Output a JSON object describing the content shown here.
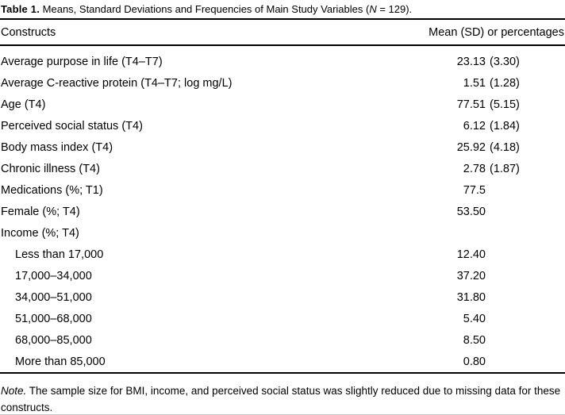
{
  "caption": {
    "label": "Table 1.",
    "body": " Means, Standard Deviations and Frequencies of Main Study Variables (",
    "n": "N",
    "suffix": " = 129)."
  },
  "header": {
    "construct_col": "Constructs",
    "value_col": "Mean (SD) or percentages"
  },
  "rows": [
    {
      "label": "Average purpose in life (T4–T7)",
      "num": "23.13",
      "sd": "(3.30)",
      "indent": false
    },
    {
      "label": "Average C-reactive protein (T4–T7; log mg/L)",
      "num": "1.51",
      "sd": "(1.28)",
      "indent": false
    },
    {
      "label": "Age (T4)",
      "num": "77.51",
      "sd": "(5.15)",
      "indent": false
    },
    {
      "label": "Perceived social status (T4)",
      "num": "6.12",
      "sd": "(1.84)",
      "indent": false
    },
    {
      "label": "Body mass index (T4)",
      "num": "25.92",
      "sd": "(4.18)",
      "indent": false
    },
    {
      "label": "Chronic illness (T4)",
      "num": "2.78",
      "sd": "(1.87)",
      "indent": false
    },
    {
      "label": "Medications (%; T1)",
      "num": "77.5",
      "sd": "",
      "indent": false
    },
    {
      "label": "Female (%; T4)",
      "num": "53.50",
      "sd": "",
      "indent": false
    },
    {
      "label": "Income (%; T4)",
      "num": "",
      "sd": "",
      "indent": false
    },
    {
      "label": "Less than 17,000",
      "num": "12.40",
      "sd": "",
      "indent": true
    },
    {
      "label": "17,000–34,000",
      "num": "37.20",
      "sd": "",
      "indent": true
    },
    {
      "label": "34,000–51,000",
      "num": "31.80",
      "sd": "",
      "indent": true
    },
    {
      "label": "51,000–68,000",
      "num": "5.40",
      "sd": "",
      "indent": true
    },
    {
      "label": "68,000–85,000",
      "num": "8.50",
      "sd": "",
      "indent": true
    },
    {
      "label": "More than 85,000",
      "num": "0.80",
      "sd": "",
      "indent": true
    }
  ],
  "note": {
    "label": "Note.",
    "text": " The sample size for BMI, income, and perceived social status was slightly reduced due to missing data for these constructs."
  }
}
